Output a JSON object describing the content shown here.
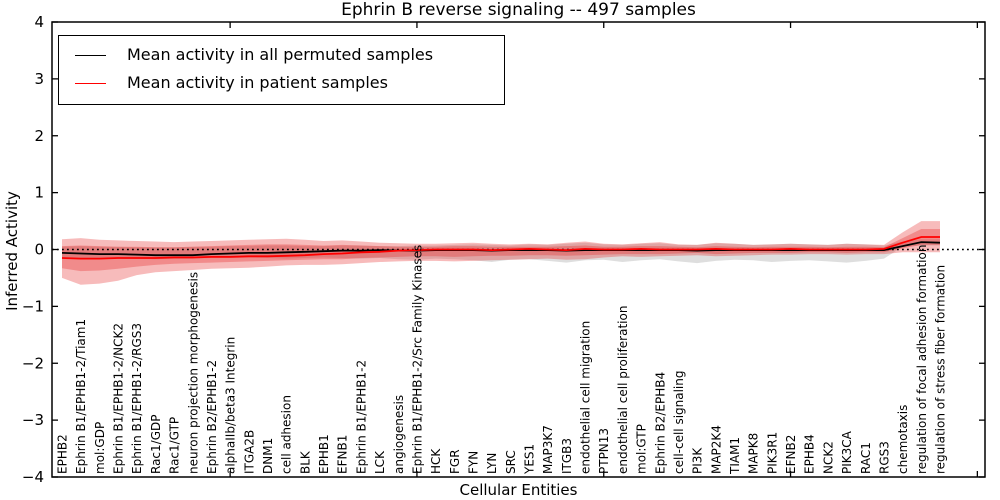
{
  "chart_data": {
    "type": "line",
    "title": "Ephrin B reverse signaling -- 497 samples",
    "xlabel": "Cellular Entities",
    "ylabel": "Inferred Activity",
    "ylim": [
      -4,
      4
    ],
    "yticks": [
      -4,
      -3,
      -2,
      -1,
      0,
      1,
      2,
      3,
      4
    ],
    "xtick_positions": [
      10,
      20,
      30,
      40,
      50
    ],
    "grid": false,
    "zero_line": {
      "value": 0,
      "style": "dotted",
      "color": "#000000"
    },
    "legend": {
      "position": "upper left",
      "entries": [
        {
          "label": "Mean activity in all permuted samples",
          "color": "#000000"
        },
        {
          "label": "Mean activity in patient samples",
          "color": "#ff0000"
        }
      ]
    },
    "categories": [
      "EPHB2",
      "Ephrin B1/EPHB1-2/Tiam1",
      "mol:GDP",
      "Ephrin B1/EPHB1-2/NCK2",
      "Ephrin B1/EPHB1-2/RGS3",
      "Rac1/GDP",
      "Rac1/GTP",
      "neuron projection morphogenesis",
      "Ephrin B2/EPHB1-2",
      "alphaIIb/beta3 Integrin",
      "ITGA2B",
      "DNM1",
      "cell adhesion",
      "BLK",
      "EPHB1",
      "EFNB1",
      "Ephrin B1/EPHB1-2",
      "LCK",
      "angiogenesis",
      "Ephrin B1/EPHB1-2/Src Family Kinases",
      "HCK",
      "FGR",
      "FYN",
      "LYN",
      "SRC",
      "YES1",
      "MAP3K7",
      "ITGB3",
      "endothelial cell migration",
      "PTPN13",
      "endothelial cell proliferation",
      "mol:GTP",
      "Ephrin B2/EPHB4",
      "cell-cell signaling",
      "PI3K",
      "MAP2K4",
      "TIAM1",
      "MAPK8",
      "PIK3R1",
      "EFNB2",
      "EPHB4",
      "NCK2",
      "PIK3CA",
      "RAC1",
      "RGS3",
      "chemotaxis",
      "regulation of focal adhesion formation",
      "regulation of stress fiber formation"
    ],
    "series": [
      {
        "name": "Mean activity in all permuted samples",
        "slug": "permuted-mean-line",
        "color": "#000000",
        "values": [
          -0.06,
          -0.07,
          -0.08,
          -0.08,
          -0.09,
          -0.1,
          -0.1,
          -0.1,
          -0.08,
          -0.07,
          -0.06,
          -0.06,
          -0.05,
          -0.04,
          -0.03,
          -0.02,
          -0.02,
          -0.01,
          -0.02,
          -0.02,
          -0.01,
          -0.01,
          -0.01,
          -0.02,
          -0.01,
          -0.01,
          -0.01,
          -0.02,
          -0.01,
          -0.01,
          -0.01,
          -0.01,
          -0.01,
          -0.01,
          -0.02,
          -0.01,
          -0.01,
          -0.01,
          -0.01,
          -0.01,
          -0.01,
          -0.01,
          -0.01,
          -0.01,
          -0.01,
          0.06,
          0.13,
          0.12
        ]
      },
      {
        "name": "Mean activity in patient samples",
        "slug": "patient-mean-line",
        "color": "#ff0000",
        "values": [
          -0.15,
          -0.16,
          -0.16,
          -0.15,
          -0.15,
          -0.15,
          -0.14,
          -0.14,
          -0.13,
          -0.13,
          -0.12,
          -0.12,
          -0.11,
          -0.1,
          -0.08,
          -0.07,
          -0.05,
          -0.04,
          -0.02,
          -0.01,
          0.0,
          0.0,
          0.0,
          -0.01,
          0.0,
          0.01,
          0.0,
          -0.01,
          0.01,
          0.0,
          0.0,
          0.01,
          0.0,
          0.0,
          0.0,
          0.01,
          0.0,
          0.0,
          0.0,
          0.01,
          0.0,
          0.0,
          0.0,
          0.0,
          0.01,
          0.12,
          0.22,
          0.22
        ]
      }
    ],
    "bands": [
      {
        "slug": "permuted-std-band",
        "color": "#999999",
        "opacity": 0.32,
        "top": [
          0.05,
          0.06,
          0.05,
          0.05,
          0.04,
          0.04,
          0.04,
          0.05,
          0.05,
          0.06,
          0.06,
          0.07,
          0.07,
          0.06,
          0.06,
          0.07,
          0.07,
          0.06,
          0.06,
          0.07,
          0.07,
          0.08,
          0.09,
          0.08,
          0.07,
          0.09,
          0.08,
          0.1,
          0.12,
          0.09,
          0.08,
          0.1,
          0.11,
          0.08,
          0.08,
          0.11,
          0.1,
          0.08,
          0.09,
          0.1,
          0.09,
          0.08,
          0.1,
          0.09,
          0.07,
          0.14,
          0.18,
          0.18
        ],
        "bottom": [
          -0.15,
          -0.17,
          -0.16,
          -0.16,
          -0.16,
          -0.17,
          -0.16,
          -0.16,
          -0.15,
          -0.15,
          -0.14,
          -0.15,
          -0.16,
          -0.15,
          -0.14,
          -0.15,
          -0.16,
          -0.15,
          -0.17,
          -0.18,
          -0.16,
          -0.17,
          -0.19,
          -0.22,
          -0.18,
          -0.17,
          -0.2,
          -0.23,
          -0.19,
          -0.18,
          -0.22,
          -0.19,
          -0.17,
          -0.21,
          -0.24,
          -0.2,
          -0.18,
          -0.19,
          -0.22,
          -0.2,
          -0.19,
          -0.21,
          -0.23,
          -0.2,
          -0.16,
          0.05,
          0.07,
          0.07
        ]
      },
      {
        "slug": "patient-outer-band",
        "color": "#e51e1e",
        "opacity": 0.3,
        "top": [
          0.18,
          0.2,
          0.17,
          0.16,
          0.15,
          0.14,
          0.13,
          0.14,
          0.15,
          0.16,
          0.17,
          0.18,
          0.19,
          0.17,
          0.15,
          0.16,
          0.14,
          0.12,
          0.11,
          0.1,
          0.1,
          0.11,
          0.12,
          0.1,
          0.09,
          0.1,
          0.09,
          0.12,
          0.14,
          0.1,
          0.09,
          0.11,
          0.13,
          0.09,
          0.08,
          0.12,
          0.1,
          0.08,
          0.09,
          0.1,
          0.09,
          0.08,
          0.1,
          0.09,
          0.08,
          0.3,
          0.5,
          0.5
        ],
        "bottom": [
          -0.5,
          -0.62,
          -0.6,
          -0.55,
          -0.45,
          -0.4,
          -0.38,
          -0.36,
          -0.34,
          -0.33,
          -0.32,
          -0.3,
          -0.28,
          -0.27,
          -0.27,
          -0.26,
          -0.24,
          -0.22,
          -0.21,
          -0.2,
          -0.2,
          -0.21,
          -0.2,
          -0.19,
          -0.18,
          -0.17,
          -0.16,
          -0.18,
          -0.17,
          -0.14,
          -0.12,
          -0.13,
          -0.12,
          -0.11,
          -0.1,
          -0.12,
          -0.11,
          -0.1,
          -0.09,
          -0.09,
          -0.08,
          -0.08,
          -0.09,
          -0.08,
          -0.08,
          -0.05,
          -0.05,
          -0.05
        ]
      },
      {
        "slug": "patient-inner-band",
        "color": "#e51e1e",
        "opacity": 0.3,
        "top": [
          0.06,
          0.07,
          0.06,
          0.05,
          0.05,
          0.04,
          0.04,
          0.05,
          0.06,
          0.07,
          0.08,
          0.09,
          0.09,
          0.08,
          0.07,
          0.08,
          0.07,
          0.06,
          0.05,
          0.05,
          0.05,
          0.06,
          0.06,
          0.05,
          0.05,
          0.05,
          0.05,
          0.06,
          0.07,
          0.05,
          0.05,
          0.06,
          0.06,
          0.05,
          0.04,
          0.06,
          0.05,
          0.04,
          0.05,
          0.05,
          0.05,
          0.04,
          0.05,
          0.05,
          0.04,
          0.2,
          0.36,
          0.36
        ],
        "bottom": [
          -0.33,
          -0.38,
          -0.37,
          -0.34,
          -0.3,
          -0.27,
          -0.25,
          -0.24,
          -0.23,
          -0.22,
          -0.21,
          -0.2,
          -0.19,
          -0.18,
          -0.17,
          -0.17,
          -0.15,
          -0.14,
          -0.13,
          -0.12,
          -0.12,
          -0.13,
          -0.12,
          -0.11,
          -0.11,
          -0.1,
          -0.1,
          -0.11,
          -0.1,
          -0.09,
          -0.08,
          -0.08,
          -0.08,
          -0.07,
          -0.06,
          -0.08,
          -0.07,
          -0.06,
          -0.06,
          -0.06,
          -0.05,
          -0.05,
          -0.06,
          -0.05,
          -0.05,
          0.02,
          0.08,
          0.08
        ]
      }
    ]
  }
}
